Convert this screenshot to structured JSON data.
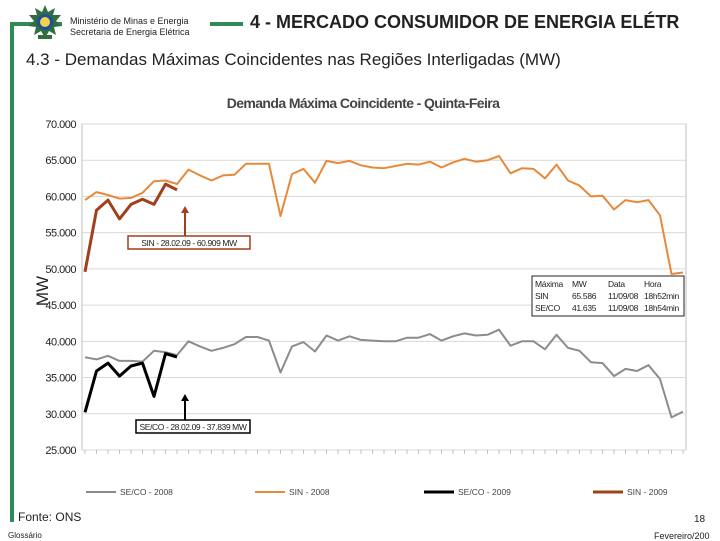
{
  "header": {
    "ministry_line1": "Ministério de Minas e Energia",
    "ministry_line2": "Secretaria de Energia Elétrica",
    "title": "4 - MERCADO CONSUMIDOR DE ENERGIA ELÉTR",
    "subtitle": "4.3 - Demandas Máximas Coincidentes nas Regiões Interligadas (MW)"
  },
  "footer": {
    "source": "Fonte: ONS",
    "glossary": "Glossário",
    "page_number": "18",
    "date": "Fevereiro/200"
  },
  "colors": {
    "frame": "#2e8b57",
    "sin_2008": "#e8893a",
    "sin_2009": "#a0401c",
    "seco_2008": "#8c8c8c",
    "seco_2009": "#000000"
  },
  "chart_data": {
    "type": "line",
    "title": "Demanda Máxima Coincidente - Quinta-Feira",
    "ylabel": "MW",
    "ylim": [
      25000,
      70000
    ],
    "yticks": [
      "70.000",
      "65.000",
      "60.000",
      "55.000",
      "50.000",
      "45.000",
      "40.000",
      "35.000",
      "30.000",
      "25.000"
    ],
    "grid": true,
    "legend_position": "bottom",
    "series": [
      {
        "name": "SE/CO - 2008",
        "values": [
          37800,
          37500,
          38000,
          37300,
          37300,
          37200,
          38700,
          38500,
          38100,
          40000,
          39300,
          38700,
          39100,
          39600,
          40600,
          40600,
          40100,
          35700,
          39300,
          39900,
          38600,
          40800,
          40100,
          40700,
          40200,
          40100,
          40000,
          40000,
          40500,
          40500,
          41000,
          40100,
          40700,
          41100,
          40800,
          40900,
          41600,
          39400,
          40000,
          40000,
          38900,
          40900,
          39100,
          38700,
          37100,
          37000,
          35200,
          36200,
          35900,
          36700,
          34800,
          29500,
          30300
        ]
      },
      {
        "name": "SIN - 2008",
        "values": [
          59500,
          60600,
          60200,
          59700,
          59800,
          60500,
          62100,
          62200,
          61700,
          63700,
          62900,
          62200,
          62900,
          63000,
          64500,
          64500,
          64500,
          57300,
          63100,
          63800,
          61900,
          64900,
          64600,
          64900,
          64300,
          64000,
          63900,
          64200,
          64500,
          64400,
          64800,
          64000,
          64700,
          65200,
          64800,
          65000,
          65586,
          63200,
          63900,
          63800,
          62500,
          64400,
          62200,
          61500,
          60000,
          60100,
          58200,
          59500,
          59200,
          59500,
          57400,
          49300,
          49500
        ]
      },
      {
        "name": "SE/CO - 2009",
        "values": [
          30200,
          35900,
          37000,
          35200,
          36600,
          37000,
          32400,
          38300,
          37839
        ]
      },
      {
        "name": "SIN - 2009",
        "values": [
          49600,
          58100,
          59500,
          56900,
          58900,
          59600,
          58900,
          61700,
          60909
        ]
      }
    ],
    "annotations": [
      {
        "label": "SIN - 28.02.09 - 60.909 MW"
      },
      {
        "label": "SE/CO - 28.02.09 - 37.839 MW"
      }
    ],
    "summary_table": {
      "headers": [
        "Máxima",
        "MW",
        "Data",
        "Hora"
      ],
      "rows": [
        [
          "SIN",
          "65.586",
          "11/09/08",
          "18h52min"
        ],
        [
          "SE/CO",
          "41.635",
          "11/09/08",
          "18h54min"
        ]
      ]
    }
  }
}
